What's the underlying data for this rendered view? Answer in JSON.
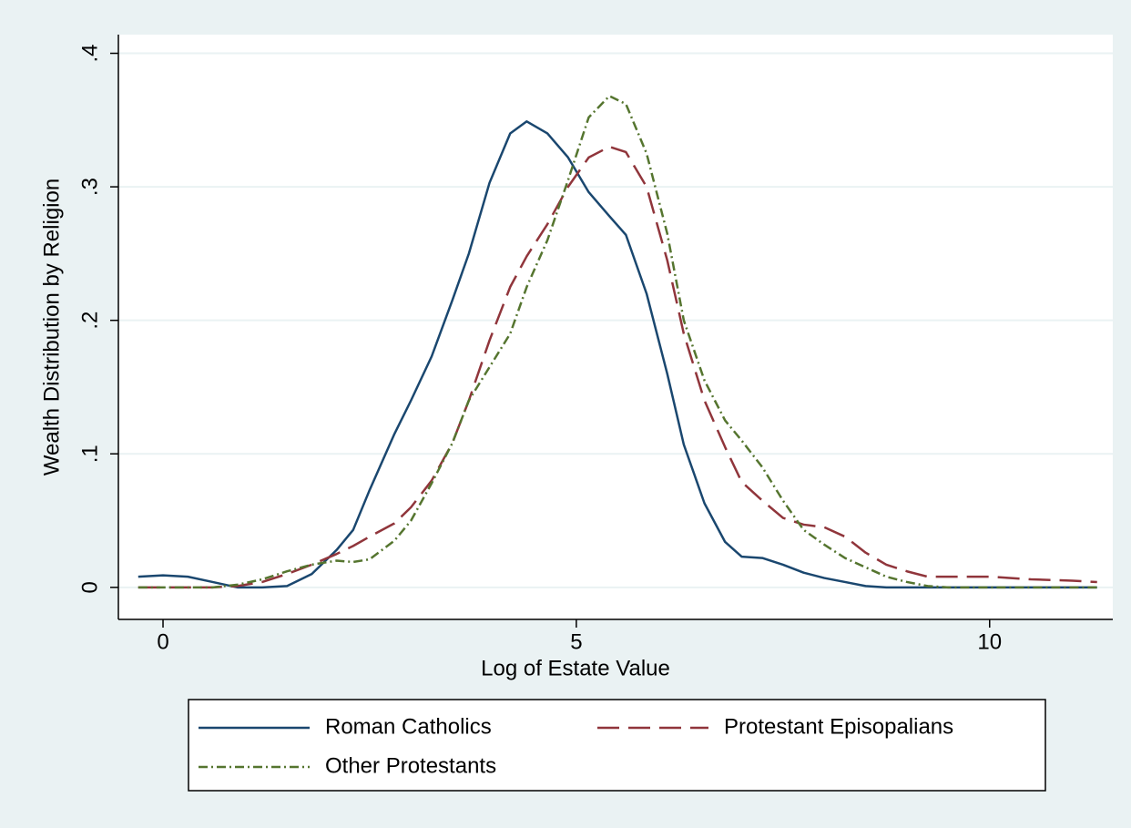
{
  "chart_data": {
    "type": "line",
    "x_label": "Log of Estate Value",
    "y_label": "Wealth Distribution by Religion",
    "x": [
      -0.3,
      0,
      0.3,
      0.6,
      0.9,
      1.2,
      1.5,
      1.8,
      2.1,
      2.3,
      2.5,
      2.8,
      3.0,
      3.25,
      3.5,
      3.7,
      3.95,
      4.2,
      4.4,
      4.65,
      4.9,
      5.15,
      5.4,
      5.6,
      5.85,
      6.1,
      6.3,
      6.55,
      6.8,
      7.0,
      7.25,
      7.5,
      7.75,
      8.0,
      8.25,
      8.5,
      8.75,
      9.0,
      9.25,
      9.5,
      10.0,
      10.5,
      11.0,
      11.3
    ],
    "series": [
      {
        "name": "Roman Catholics",
        "color": "#1a476f",
        "dash": "none",
        "values": [
          0.008,
          0.009,
          0.008,
          0.004,
          0,
          0,
          0.001,
          0.01,
          0.028,
          0.043,
          0.073,
          0.115,
          0.14,
          0.173,
          0.215,
          0.25,
          0.303,
          0.34,
          0.349,
          0.34,
          0.322,
          0.296,
          0.278,
          0.264,
          0.22,
          0.16,
          0.107,
          0.063,
          0.034,
          0.023,
          0.022,
          0.017,
          0.011,
          0.007,
          0.004,
          0.001,
          0,
          0,
          0,
          0,
          0,
          0,
          0,
          0
        ]
      },
      {
        "name": "Protestant Episopalians",
        "color": "#90353b",
        "dash": "24,10",
        "values": [
          0,
          0,
          0,
          0,
          0.001,
          0.004,
          0.01,
          0.017,
          0.025,
          0.031,
          0.038,
          0.048,
          0.06,
          0.08,
          0.108,
          0.14,
          0.185,
          0.225,
          0.248,
          0.272,
          0.3,
          0.322,
          0.33,
          0.326,
          0.3,
          0.245,
          0.19,
          0.14,
          0.105,
          0.079,
          0.065,
          0.052,
          0.047,
          0.045,
          0.038,
          0.026,
          0.017,
          0.012,
          0.008,
          0.008,
          0.008,
          0.006,
          0.005,
          0.004
        ]
      },
      {
        "name": "Other Protestants",
        "color": "#55752f",
        "dash": "10,4,2,4",
        "values": [
          0,
          0,
          0,
          0,
          0.002,
          0.006,
          0.012,
          0.017,
          0.02,
          0.019,
          0.021,
          0.035,
          0.05,
          0.078,
          0.108,
          0.14,
          0.165,
          0.19,
          0.225,
          0.26,
          0.305,
          0.352,
          0.368,
          0.362,
          0.325,
          0.265,
          0.2,
          0.155,
          0.125,
          0.11,
          0.09,
          0.065,
          0.043,
          0.032,
          0.022,
          0.015,
          0.008,
          0.004,
          0.001,
          0,
          0,
          0,
          0,
          0
        ]
      }
    ],
    "xlim": [
      -0.54,
      11.49
    ],
    "ylim": [
      -0.024,
      0.414
    ],
    "xticks": [
      0,
      5,
      10
    ],
    "yticks": [
      0,
      {
        "value": 0.1,
        "label": ".1"
      },
      {
        "value": 0.2,
        "label": ".2"
      },
      {
        "value": 0.3,
        "label": ".3"
      },
      {
        "value": 0.4,
        "label": ".4"
      }
    ],
    "grid": true,
    "legend": "bottom"
  }
}
